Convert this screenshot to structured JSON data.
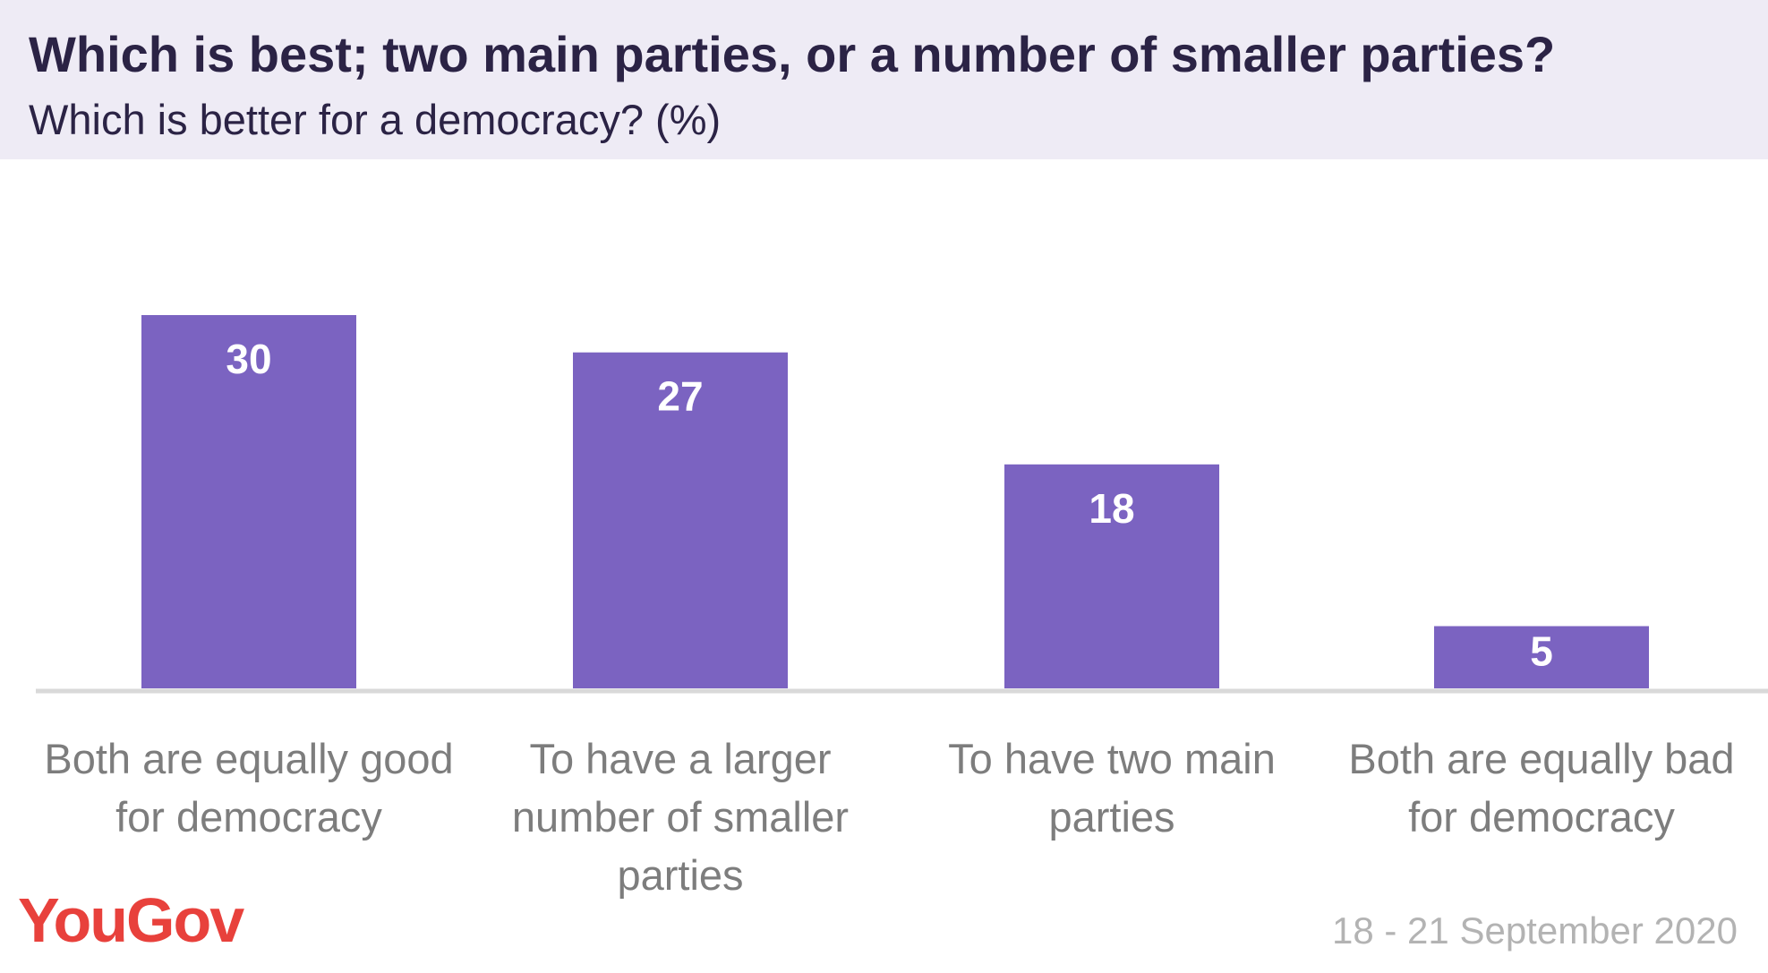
{
  "header": {
    "title": "Which is best; two main parties, or a number of smaller parties?",
    "subtitle": "Which is better for a democracy? (%)"
  },
  "chart_data": {
    "type": "bar",
    "categories": [
      "Both are equally good for democracy",
      "To have a larger number of smaller parties",
      "To have two main parties",
      "Both are equally bad for democracy"
    ],
    "values": [
      30,
      27,
      18,
      5
    ],
    "ylim": [
      0,
      40
    ],
    "grid": false,
    "bar_color": "#7b63c1",
    "value_label_color": "#ffffff"
  },
  "footer": {
    "logo_text": "YouGov",
    "logo_color": "#e8413c",
    "date": "18 - 21 September 2020"
  }
}
